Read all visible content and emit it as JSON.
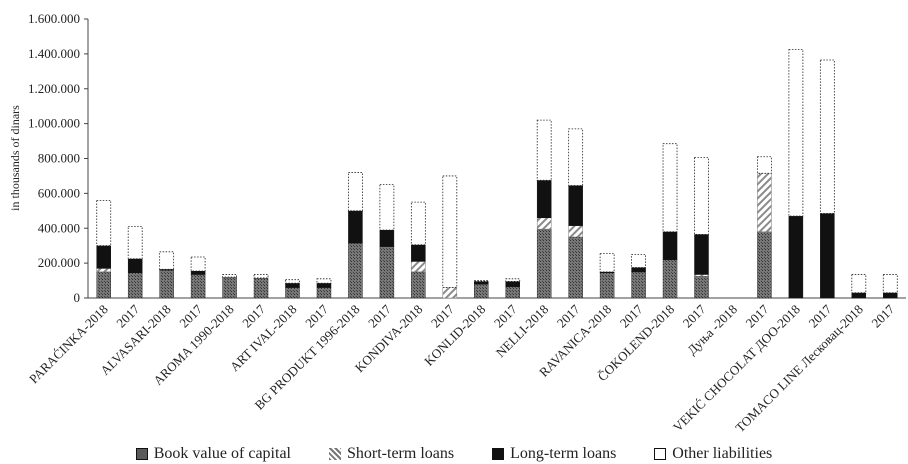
{
  "chart_data": {
    "type": "bar",
    "stacked": true,
    "ylabel": "in thousands of dinars",
    "ylim": [
      0,
      1600000
    ],
    "yticks": [
      "0",
      "200.000",
      "400.000",
      "600.000",
      "800.000",
      "1.000.000",
      "1.200.000",
      "1.400.000",
      "1.600.000"
    ],
    "grid": false,
    "legend_position": "bottom",
    "categories": [
      "PARAĆINKA-2018",
      "2017",
      "ALVASARI-2018",
      "2017",
      "AROMA 1990-2018",
      "2017",
      "ART IVAL-2018",
      "2017",
      "BG PRODUKT 1996-2018",
      "2017",
      "KONDIVA-2018",
      "2017",
      "KONLID-2018",
      "2017",
      "NELLI-2018",
      "2017",
      "RAVANICA-2018",
      "2017",
      "ČOKOLEND-2018",
      "2017",
      "Дуња -2018",
      "2017",
      "VEKIĆ CHOCOLAT ДОО-2018",
      "2017",
      "TOMACO LINE Лесковац-2018",
      "2017"
    ],
    "series": [
      {
        "name": "Book value of capital",
        "color": "#6b6b6b",
        "values": [
          150000,
          145000,
          160000,
          135000,
          120000,
          115000,
          60000,
          60000,
          315000,
          295000,
          150000,
          0,
          80000,
          65000,
          395000,
          350000,
          145000,
          150000,
          220000,
          125000,
          0,
          380000,
          0,
          0,
          0,
          0
        ]
      },
      {
        "name": "Short-term loans",
        "color": "#c8c8c8",
        "values": [
          20000,
          0,
          0,
          0,
          0,
          0,
          0,
          0,
          0,
          0,
          60000,
          60000,
          0,
          0,
          65000,
          65000,
          0,
          0,
          0,
          10000,
          0,
          335000,
          0,
          0,
          0,
          0
        ]
      },
      {
        "name": "Long-term loans",
        "color": "#111111",
        "values": [
          130000,
          80000,
          5000,
          20000,
          0,
          0,
          25000,
          25000,
          185000,
          95000,
          95000,
          0,
          15000,
          30000,
          215000,
          230000,
          5000,
          25000,
          160000,
          230000,
          0,
          0,
          470000,
          485000,
          30000,
          30000
        ]
      },
      {
        "name": "Other liabilities",
        "color": "#ffffff",
        "values": [
          260000,
          185000,
          100000,
          80000,
          15000,
          20000,
          20000,
          25000,
          220000,
          260000,
          245000,
          640000,
          5000,
          15000,
          345000,
          325000,
          105000,
          75000,
          505000,
          440000,
          0,
          95000,
          955000,
          880000,
          105000,
          105000
        ]
      }
    ]
  },
  "legend": [
    {
      "label": "Book value of capital",
      "swatch": "dark-dotted"
    },
    {
      "label": "Short-term loans",
      "swatch": "hatched"
    },
    {
      "label": "Long-term loans",
      "swatch": "black"
    },
    {
      "label": "Other  liabilities",
      "swatch": "white-dotted"
    }
  ]
}
